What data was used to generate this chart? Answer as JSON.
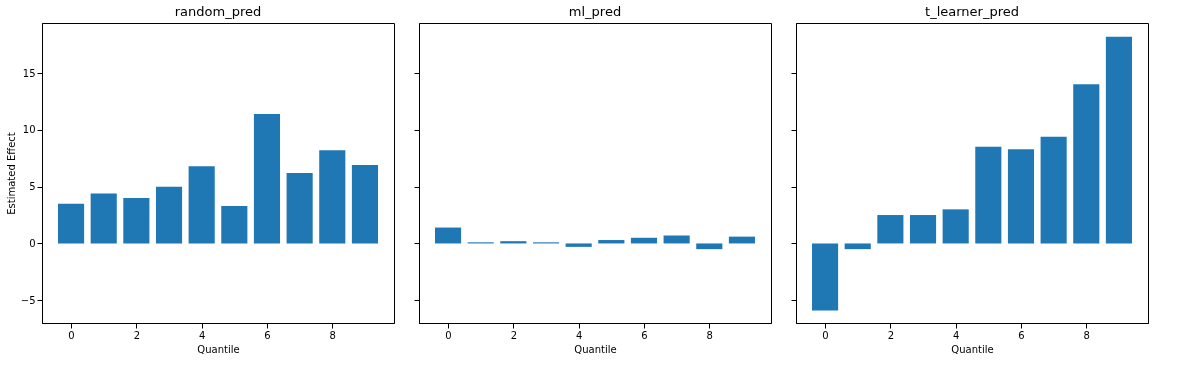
{
  "chart_data": [
    {
      "type": "bar",
      "title": "random_pred",
      "xlabel": "Quantile",
      "ylabel": "Estimated Effect",
      "x": [
        0,
        1,
        2,
        3,
        4,
        5,
        6,
        7,
        8,
        9
      ],
      "values": [
        3.5,
        4.4,
        4.0,
        5.0,
        6.8,
        3.3,
        11.4,
        6.2,
        8.2,
        6.9
      ],
      "color": "#1f77b4",
      "xlim": [
        -0.89,
        9.89
      ],
      "xticks": [
        0,
        2,
        4,
        6,
        8
      ],
      "ylim": [
        -7.0,
        19.4
      ],
      "yticks": [
        -5,
        0,
        5,
        10,
        15
      ],
      "grid": false
    },
    {
      "type": "bar",
      "title": "ml_pred",
      "xlabel": "Quantile",
      "x": [
        0,
        1,
        2,
        3,
        4,
        5,
        6,
        7,
        8,
        9
      ],
      "values": [
        1.4,
        0.1,
        0.2,
        0.1,
        -0.3,
        0.3,
        0.5,
        0.7,
        -0.5,
        0.6
      ],
      "color": "#1f77b4",
      "xlim": [
        -0.89,
        9.89
      ],
      "xticks": [
        0,
        2,
        4,
        6,
        8
      ],
      "ylim": [
        -7.0,
        19.4
      ],
      "yticks": [
        -5,
        0,
        5,
        10,
        15
      ],
      "grid": false,
      "tick_labels": "x"
    },
    {
      "type": "bar",
      "title": "t_learner_pred",
      "xlabel": "Quantile",
      "x": [
        0,
        1,
        2,
        3,
        4,
        5,
        6,
        7,
        8,
        9
      ],
      "values": [
        -5.9,
        -0.5,
        2.5,
        2.5,
        3.0,
        8.5,
        8.3,
        9.4,
        14.0,
        18.2
      ],
      "color": "#1f77b4",
      "xlim": [
        -0.89,
        9.89
      ],
      "xticks": [
        0,
        2,
        4,
        6,
        8
      ],
      "ylim": [
        -7.0,
        19.4
      ],
      "yticks": [
        -5,
        0,
        5,
        10,
        15
      ],
      "grid": false,
      "tick_labels": "x"
    }
  ]
}
